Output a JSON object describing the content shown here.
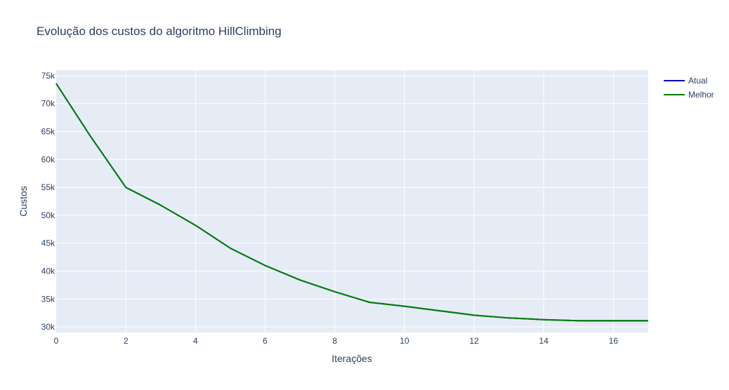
{
  "chart_data": {
    "type": "line",
    "title": "Evolução dos custos do algoritmo HillClimbing",
    "xlabel": "Iterações",
    "ylabel": "Custos",
    "xlim": [
      0,
      17
    ],
    "ylim": [
      29000,
      76000
    ],
    "x_ticks": [
      0,
      2,
      4,
      6,
      8,
      10,
      12,
      14,
      16
    ],
    "x_tick_labels": [
      "0",
      "2",
      "4",
      "6",
      "8",
      "10",
      "12",
      "14",
      "16"
    ],
    "y_ticks": [
      30000,
      35000,
      40000,
      45000,
      50000,
      55000,
      60000,
      65000,
      70000,
      75000
    ],
    "y_tick_labels": [
      "30k",
      "35k",
      "40k",
      "45k",
      "50k",
      "55k",
      "60k",
      "65k",
      "70k",
      "75k"
    ],
    "grid": true,
    "legend_position": "top-right",
    "x": [
      0,
      1,
      2,
      3,
      4,
      5,
      6,
      7,
      8,
      9,
      10,
      11,
      12,
      13,
      14,
      15,
      16,
      17
    ],
    "series": [
      {
        "name": "Atual",
        "color": "#0000cc",
        "values": [
          73600,
          64000,
          55000,
          51800,
          48200,
          44100,
          41000,
          38400,
          36300,
          34400,
          33700,
          32900,
          32100,
          31600,
          31300,
          31100,
          31100,
          31100
        ]
      },
      {
        "name": "Melhor",
        "color": "#008000",
        "values": [
          73600,
          64000,
          55000,
          51800,
          48200,
          44100,
          41000,
          38400,
          36300,
          34400,
          33700,
          32900,
          32100,
          31600,
          31300,
          31100,
          31100,
          31100
        ]
      }
    ]
  },
  "colors": {
    "plot_background": "#e5ecf6",
    "grid": "#ffffff",
    "text": "#2a3f5f"
  }
}
